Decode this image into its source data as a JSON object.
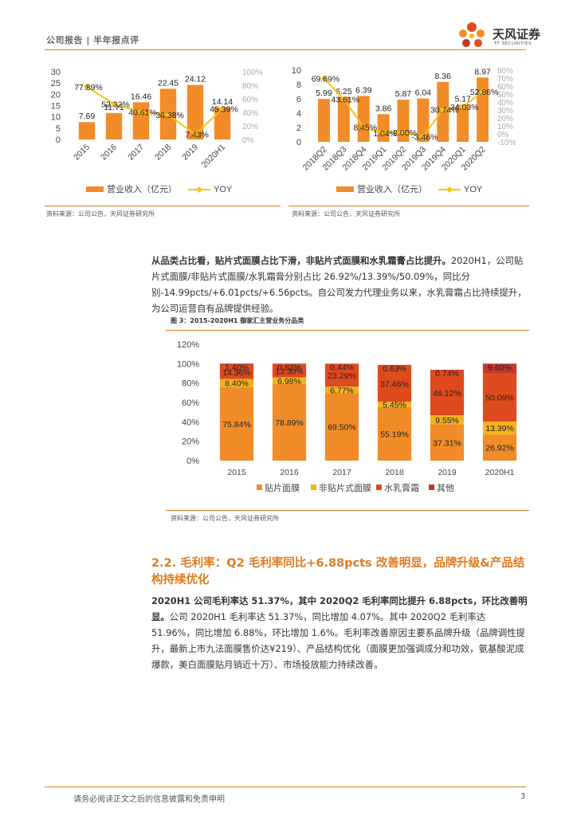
{
  "header": {
    "report_type": "公司报告 | 半年报点评",
    "logo_name": "天风证券",
    "logo_sub": "TF SECURITIES"
  },
  "colors": {
    "accent": "#e07a1f",
    "yoy": "#f5c518",
    "bar": "#f28c28",
    "dark_red": "#c0392b",
    "red": "#e04a1f",
    "yellow": "#f5b31b"
  },
  "chart1": {
    "source": "资料来源：公司公告，天风证券研究所",
    "legend_bar": "营业收入（亿元）",
    "legend_line": "YOY",
    "left_ticks": [
      "30",
      "25",
      "20",
      "15",
      "10",
      "5",
      "0"
    ],
    "right_ticks": [
      "100%",
      "80%",
      "60%",
      "40%",
      "20%",
      "0%"
    ],
    "bar_labels": [
      "7.69",
      "11.71",
      "16.46",
      "22.45",
      "24.12",
      "14.14"
    ],
    "yoy_labels": [
      "77.89%",
      "52.32%",
      "40.61%",
      "36.38%",
      "7.43%",
      "45.39%"
    ]
  },
  "chart2": {
    "source": "资料来源：公司公告，天风证券研究所",
    "legend_bar": "营业收入（亿元）",
    "legend_line": "YOY",
    "left_ticks": [
      "10",
      "8",
      "6",
      "4",
      "2",
      "0"
    ],
    "right_ticks": [
      "80%",
      "70%",
      "60%",
      "50%",
      "40%",
      "30%",
      "20%",
      "10%",
      "0%",
      "-10%"
    ],
    "bar_labels": [
      "5.99",
      "6.25",
      "6.39",
      "3.86",
      "5.87",
      "6.04",
      "8.36",
      "5.17",
      "8.97"
    ],
    "yoy_labels": [
      "69.69%",
      "43.61%",
      "8.45%",
      "1.04%",
      "2.00%",
      "-3.46%",
      "30.74%",
      "34.03%",
      "52.86%"
    ]
  },
  "paragraph1": {
    "bold": "从品类占比看，贴片式面膜占比下滑，非贴片式面膜和水乳霜膏占比提升。",
    "text": "2020H1，公司贴片式面膜/非贴片式面膜/水乳霜膏分别占比 26.92%/13.39%/50.09%，同比分别-14.99pcts/+6.01pcts/+6.56pcts。自公司发力代理业务以来，水乳膏霜占比持续提升，为公司运营自有品牌提供经验。"
  },
  "figure3": {
    "title": "图 3：2015-2020H1 御家汇主营业务分品类",
    "source": "资料来源：公司公告，天风证券研究所",
    "y_ticks": [
      "120%",
      "100%",
      "80%",
      "60%",
      "40%",
      "20%",
      "0%"
    ],
    "legend": [
      "贴片面膜",
      "非贴片式面膜",
      "水乳膏霜",
      "其他"
    ]
  },
  "section": {
    "title": "2.2. 毛利率：Q2 毛利率同比+6.88pcts 改善明显，品牌升级&产品结构持续优化",
    "bold": "2020H1 公司毛利率达 51.37%，其中 2020Q2 毛利率同比提升 6.88pcts，环比改善明显。",
    "text": "公司 2020H1 毛利率达 51.37%，同比增加 4.07%。其中 2020Q2 毛利率达 51.96%，同比增加 6.88%，环比增加 1.6%。毛利率改善原因主要系品牌升级（品牌调性提升，最新上市九法面膜售价达¥219）、产品结构优化（面膜更加强调成分和功效，氨基酸泥成爆款，美白面膜贴月销近十万）、市场投放能力持续改善。"
  },
  "footer": {
    "disclaimer": "请务必阅读正文之后的信息披露和免责申明",
    "page": "3"
  },
  "chart_data": [
    {
      "type": "bar",
      "categories": [
        "2015",
        "2016",
        "2017",
        "2018",
        "2019",
        "2020H1"
      ],
      "series": [
        {
          "name": "营业收入（亿元）",
          "values": [
            7.69,
            11.71,
            16.46,
            22.45,
            24.12,
            14.14
          ]
        },
        {
          "name": "YOY",
          "values": [
            77.89,
            52.32,
            40.61,
            36.38,
            7.43,
            45.39
          ]
        }
      ],
      "ylim": [
        0,
        30
      ],
      "y2lim": [
        0,
        100
      ]
    },
    {
      "type": "bar",
      "categories": [
        "2018Q2",
        "2018Q3",
        "2018Q4",
        "2019Q1",
        "2019Q2",
        "2019Q3",
        "2019Q4",
        "2020Q1",
        "2020Q2"
      ],
      "series": [
        {
          "name": "营业收入（亿元）",
          "values": [
            5.99,
            6.25,
            6.39,
            3.86,
            5.87,
            6.04,
            8.36,
            5.17,
            8.97
          ]
        },
        {
          "name": "YOY",
          "values": [
            69.69,
            43.61,
            8.45,
            1.04,
            2.0,
            -3.46,
            30.74,
            34.03,
            52.86
          ]
        }
      ],
      "ylim": [
        0,
        10
      ],
      "y2lim": [
        -10,
        80
      ]
    },
    {
      "type": "bar",
      "categories": [
        "2015",
        "2016",
        "2017",
        "2018",
        "2019",
        "2020H1"
      ],
      "series": [
        {
          "name": "贴片面膜",
          "values": [
            75.84,
            78.89,
            69.5,
            55.19,
            37.31,
            26.92
          ]
        },
        {
          "name": "非贴片式面膜",
          "values": [
            8.4,
            6.98,
            6.77,
            5.45,
            9.55,
            13.39
          ]
        },
        {
          "name": "水乳膏霜",
          "values": [
            14.36,
            13.3,
            23.29,
            37.46,
            46.12,
            50.09
          ]
        },
        {
          "name": "其他",
          "values": [
            1.4,
            0.82,
            0.44,
            0.63,
            0.74,
            9.6
          ]
        }
      ],
      "ylim": [
        0,
        120
      ]
    }
  ]
}
